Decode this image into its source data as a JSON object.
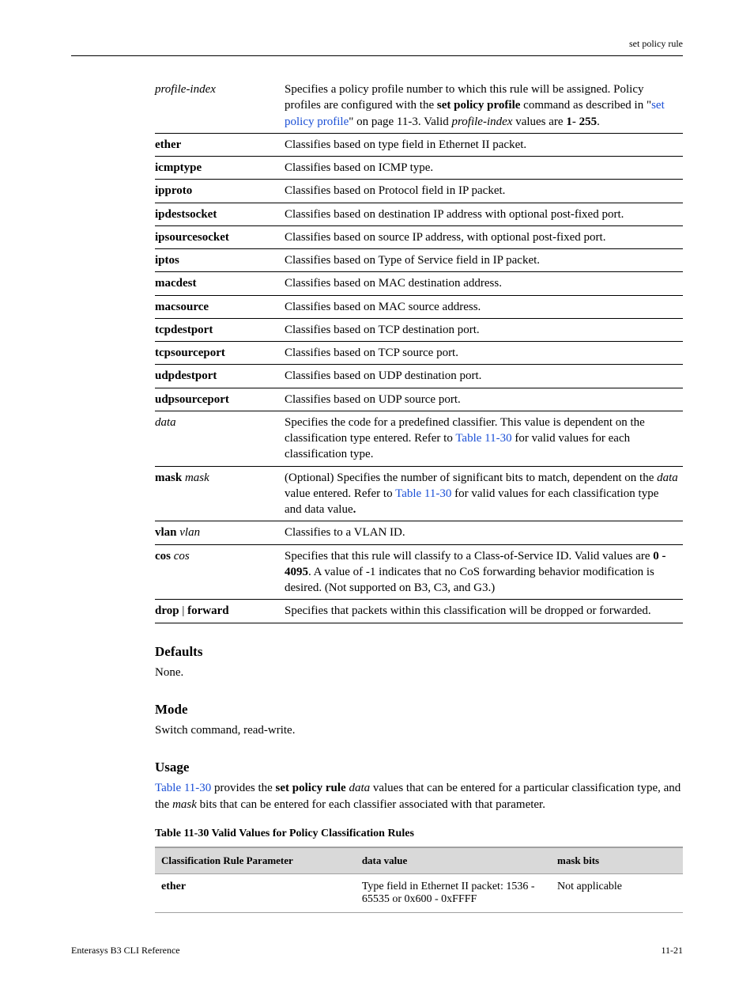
{
  "header": {
    "right": "set policy rule"
  },
  "param_table": [
    {
      "name_html": "<span class='italic'>profile-index</span>",
      "desc_html": "Specifies a policy profile number to which this rule will be assigned. Policy profiles are configured with the <span class='bold'>set policy profile</span> command as described in \"<span class='link'>set policy profile</span>\" on page 11-3. Valid <span class='italic'>profile-index</span> values are <span class='bold'>1</span>- <span class='bold'>255</span>."
    },
    {
      "name_html": "<span class='bold'>ether</span>",
      "desc_html": "Classifies based on type field in Ethernet II packet."
    },
    {
      "name_html": "<span class='bold'>icmptype</span>",
      "desc_html": "Classifies based on ICMP type."
    },
    {
      "name_html": "<span class='bold'>ipproto</span>",
      "desc_html": "Classifies based on Protocol field in IP packet."
    },
    {
      "name_html": "<span class='bold'>ipdestsocket</span>",
      "desc_html": "Classifies based on destination IP address with optional post-fixed port."
    },
    {
      "name_html": "<span class='bold'>ipsourcesocket</span>",
      "desc_html": "Classifies based on source IP address, with optional post-fixed port."
    },
    {
      "name_html": "<span class='bold'>iptos</span>",
      "desc_html": "Classifies based on Type of Service field in IP packet."
    },
    {
      "name_html": "<span class='bold'>macdest</span>",
      "desc_html": "Classifies based on MAC destination address."
    },
    {
      "name_html": "<span class='bold'>macsource</span>",
      "desc_html": "Classifies based on MAC source address."
    },
    {
      "name_html": "<span class='bold'>tcpdestport</span>",
      "desc_html": "Classifies based on TCP destination port."
    },
    {
      "name_html": "<span class='bold'>tcpsourceport</span>",
      "desc_html": "Classifies based on TCP source port."
    },
    {
      "name_html": "<span class='bold'>udpdestport</span>",
      "desc_html": "Classifies based on UDP destination port."
    },
    {
      "name_html": "<span class='bold'>udpsourceport</span>",
      "desc_html": "Classifies based on UDP source port."
    },
    {
      "name_html": "<span class='italic'>data</span>",
      "desc_html": "Specifies the code for a predefined classifier. This value is dependent on the classification type entered. Refer to <span class='link'>Table 11-30</span> for valid values for each classification type."
    },
    {
      "name_html": "<span class='bold'>mask</span> <span class='italic'>mask</span>",
      "desc_html": "(Optional) Specifies the number of significant bits to match, dependent on the <span class='italic'>data</span> value entered. Refer to <span class='link'>Table 11-30</span> for valid values for each classification type and data value<span class='bold'>.</span>"
    },
    {
      "name_html": "<span class='bold'>vlan</span> <span class='italic'>vlan</span>",
      "desc_html": "Classifies to a VLAN ID."
    },
    {
      "name_html": "<span class='bold'>cos</span> <span class='italic'>cos</span>",
      "desc_html": "Specifies that this rule will classify to a Class-of-Service ID. Valid values are <span class='bold'>0 - 4095</span>. A value of -1 indicates that no CoS forwarding behavior modification is desired. (Not supported on B3, C3, and G3.)"
    },
    {
      "name_html": "<span class='bold'>drop</span> | <span class='bold'>forward</span>",
      "desc_html": "Specifies that packets within this classification will be dropped or forwarded."
    }
  ],
  "sections": {
    "defaults": {
      "title": "Defaults",
      "body": "None."
    },
    "mode": {
      "title": "Mode",
      "body": "Switch command, read-write."
    },
    "usage": {
      "title": "Usage",
      "body_html": "<span class='link'>Table 11-30</span> provides the <span class='bold'>set policy rule</span> <span class='italic'>data</span> values that can be entered for a particular classification type, and the <span class='italic'>mask</span> bits that can be entered for each classifier associated with that parameter."
    }
  },
  "data_table": {
    "caption": "Table 11-30  Valid Values for Policy Classification Rules",
    "columns": [
      "Classification Rule Parameter",
      "data value",
      "mask bits"
    ],
    "rows": [
      {
        "c0_html": "<span class='bold'>ether</span>",
        "c1": "Type field in Ethernet II packet: 1536 - 65535 or 0x600 - 0xFFFF",
        "c2": "Not applicable"
      }
    ]
  },
  "footer": {
    "left": "Enterasys B3 CLI Reference",
    "right": "11-21"
  }
}
